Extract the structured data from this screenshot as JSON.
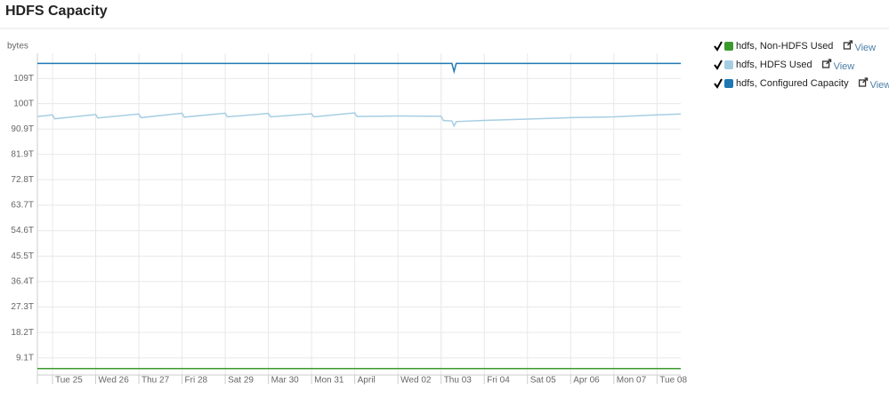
{
  "chart_data": {
    "type": "line",
    "title": "HDFS Capacity",
    "y_label": "bytes",
    "legend_action": "View",
    "xlim": [
      -0.35,
      14.55
    ],
    "xticks": [
      {
        "value": 0,
        "label": "Tue 25"
      },
      {
        "value": 1,
        "label": "Wed 26"
      },
      {
        "value": 2,
        "label": "Thu 27"
      },
      {
        "value": 3,
        "label": "Fri 28"
      },
      {
        "value": 4,
        "label": "Sat 29"
      },
      {
        "value": 5,
        "label": "Mar 30"
      },
      {
        "value": 6,
        "label": "Mon 31"
      },
      {
        "value": 7,
        "label": "April"
      },
      {
        "value": 8,
        "label": "Wed 02"
      },
      {
        "value": 9,
        "label": "Thu 03"
      },
      {
        "value": 10,
        "label": "Fri 04"
      },
      {
        "value": 11,
        "label": "Sat 05"
      },
      {
        "value": 12,
        "label": "Apr 06"
      },
      {
        "value": 13,
        "label": "Mon 07"
      },
      {
        "value": 14,
        "label": "Tue 08"
      }
    ],
    "ylim": [
      3,
      118
    ],
    "yticks": [
      {
        "value": 9.1,
        "label": "9.1T"
      },
      {
        "value": 18.2,
        "label": "18.2T"
      },
      {
        "value": 27.3,
        "label": "27.3T"
      },
      {
        "value": 36.4,
        "label": "36.4T"
      },
      {
        "value": 45.5,
        "label": "45.5T"
      },
      {
        "value": 54.6,
        "label": "54.6T"
      },
      {
        "value": 63.7,
        "label": "63.7T"
      },
      {
        "value": 72.8,
        "label": "72.8T"
      },
      {
        "value": 81.9,
        "label": "81.9T"
      },
      {
        "value": 90.9,
        "label": "90.9T"
      },
      {
        "value": 100,
        "label": "100T"
      },
      {
        "value": 109,
        "label": "109T"
      }
    ],
    "grid": true,
    "series": [
      {
        "name": "hdfs, Non-HDFS Used",
        "color": "#3a9a2e",
        "x": [
          -0.35,
          14.55
        ],
        "values": [
          5.3,
          5.3
        ]
      },
      {
        "name": "hdfs, HDFS Used",
        "color": "#a6cee3",
        "x": [
          -0.35,
          0,
          0.05,
          1,
          1.05,
          2,
          2.05,
          3,
          3.05,
          4,
          4.05,
          5,
          5.05,
          6,
          6.05,
          7,
          7.05,
          8,
          9,
          9.05,
          9.25,
          9.3,
          9.35,
          10,
          11,
          12,
          13,
          14,
          14.55
        ],
        "values": [
          95.4,
          96.0,
          94.6,
          96.1,
          94.9,
          96.3,
          95.0,
          96.6,
          95.2,
          96.6,
          95.3,
          96.5,
          95.3,
          96.4,
          95.3,
          96.7,
          95.4,
          95.6,
          95.5,
          94.0,
          93.8,
          92.0,
          93.6,
          94.0,
          94.5,
          95.0,
          95.3,
          96.0,
          96.3
        ]
      },
      {
        "name": "hdfs, Configured Capacity",
        "color": "#1f78b4",
        "x": [
          -0.35,
          9.25,
          9.3,
          9.35,
          14.55
        ],
        "values": [
          114.4,
          114.4,
          111.5,
          114.4,
          114.4
        ]
      }
    ]
  }
}
